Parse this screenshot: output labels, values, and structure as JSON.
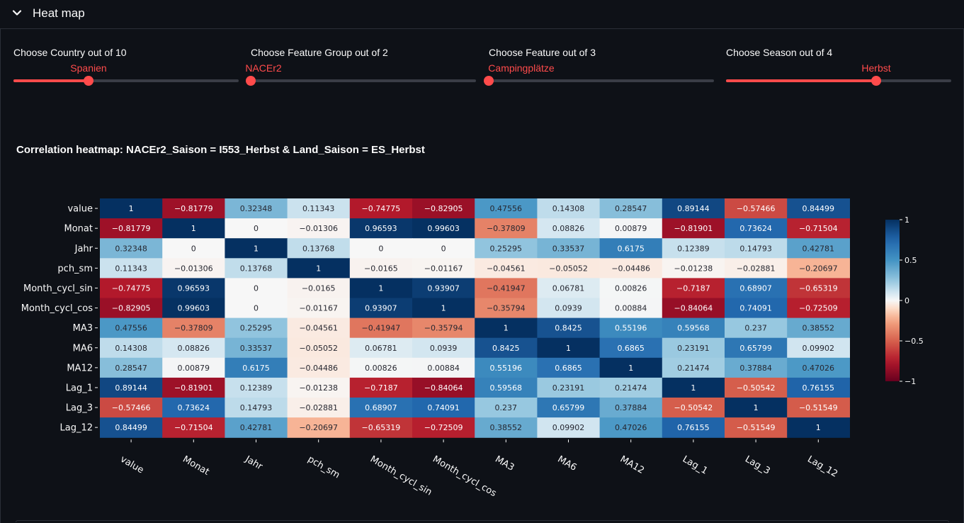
{
  "expander": {
    "title": "Heat map",
    "icon": "chevron-down-icon"
  },
  "sliders": [
    {
      "label": "Choose Country out of 10",
      "value": "Spanien",
      "fraction": 0.333
    },
    {
      "label": "Choose Feature Group out of 2",
      "value": "NACEr2",
      "fraction": 0.0
    },
    {
      "label": "Choose Feature out of 3",
      "value": "Campingplätze",
      "fraction": 0.0
    },
    {
      "label": "Choose Season out of 4",
      "value": "Herbst",
      "fraction": 0.667
    }
  ],
  "accent_color": "#ff4b4b",
  "chart_data": {
    "type": "heatmap",
    "title": "Correlation heatmap: NACEr2_Saison = I553_Herbst & Land_Saison = ES_Herbst",
    "colormap": "RdBu",
    "vmin": -1,
    "vmax": 1,
    "colorbar_ticks": [
      1,
      0.5,
      0,
      -0.5,
      -1
    ],
    "colorbar_tick_labels": [
      "1",
      "0.5",
      "0",
      "−0.5",
      "−1"
    ],
    "labels": [
      "value",
      "Monat",
      "Jahr",
      "pch_sm",
      "Month_cycl_sin",
      "Month_cycl_cos",
      "MA3",
      "MA6",
      "MA12",
      "Lag_1",
      "Lag_3",
      "Lag_12"
    ],
    "values": [
      [
        1,
        -0.81779,
        0.32348,
        0.11343,
        -0.74775,
        -0.82905,
        0.47556,
        0.14308,
        0.28547,
        0.89144,
        -0.57466,
        0.84499
      ],
      [
        -0.81779,
        1,
        0,
        -0.01306,
        0.96593,
        0.99603,
        -0.37809,
        0.08826,
        0.00879,
        -0.81901,
        0.73624,
        -0.71504
      ],
      [
        0.32348,
        0,
        1,
        0.13768,
        0,
        0,
        0.25295,
        0.33537,
        0.6175,
        0.12389,
        0.14793,
        0.42781
      ],
      [
        0.11343,
        -0.01306,
        0.13768,
        1,
        -0.0165,
        -0.01167,
        -0.04561,
        -0.05052,
        -0.04486,
        -0.01238,
        -0.02881,
        -0.20697
      ],
      [
        -0.74775,
        0.96593,
        0,
        -0.0165,
        1,
        0.93907,
        -0.41947,
        0.06781,
        0.00826,
        -0.7187,
        0.68907,
        -0.65319
      ],
      [
        -0.82905,
        0.99603,
        0,
        -0.01167,
        0.93907,
        1,
        -0.35794,
        0.0939,
        0.00884,
        -0.84064,
        0.74091,
        -0.72509
      ],
      [
        0.47556,
        -0.37809,
        0.25295,
        -0.04561,
        -0.41947,
        -0.35794,
        1,
        0.8425,
        0.55196,
        0.59568,
        0.237,
        0.38552
      ],
      [
        0.14308,
        0.08826,
        0.33537,
        -0.05052,
        0.06781,
        0.0939,
        0.8425,
        1,
        0.6865,
        0.23191,
        0.65799,
        0.09902
      ],
      [
        0.28547,
        0.00879,
        0.6175,
        -0.04486,
        0.00826,
        0.00884,
        0.55196,
        0.6865,
        1,
        0.21474,
        0.37884,
        0.47026
      ],
      [
        0.89144,
        -0.81901,
        0.12389,
        -0.01238,
        -0.7187,
        -0.84064,
        0.59568,
        0.23191,
        0.21474,
        1,
        -0.50542,
        0.76155
      ],
      [
        -0.57466,
        0.73624,
        0.14793,
        -0.02881,
        0.68907,
        0.74091,
        0.237,
        0.65799,
        0.37884,
        -0.50542,
        1,
        -0.51549
      ],
      [
        0.84499,
        -0.71504,
        0.42781,
        -0.20697,
        -0.65319,
        -0.72509,
        0.38552,
        0.09902,
        0.47026,
        0.76155,
        -0.51549,
        1
      ]
    ]
  }
}
